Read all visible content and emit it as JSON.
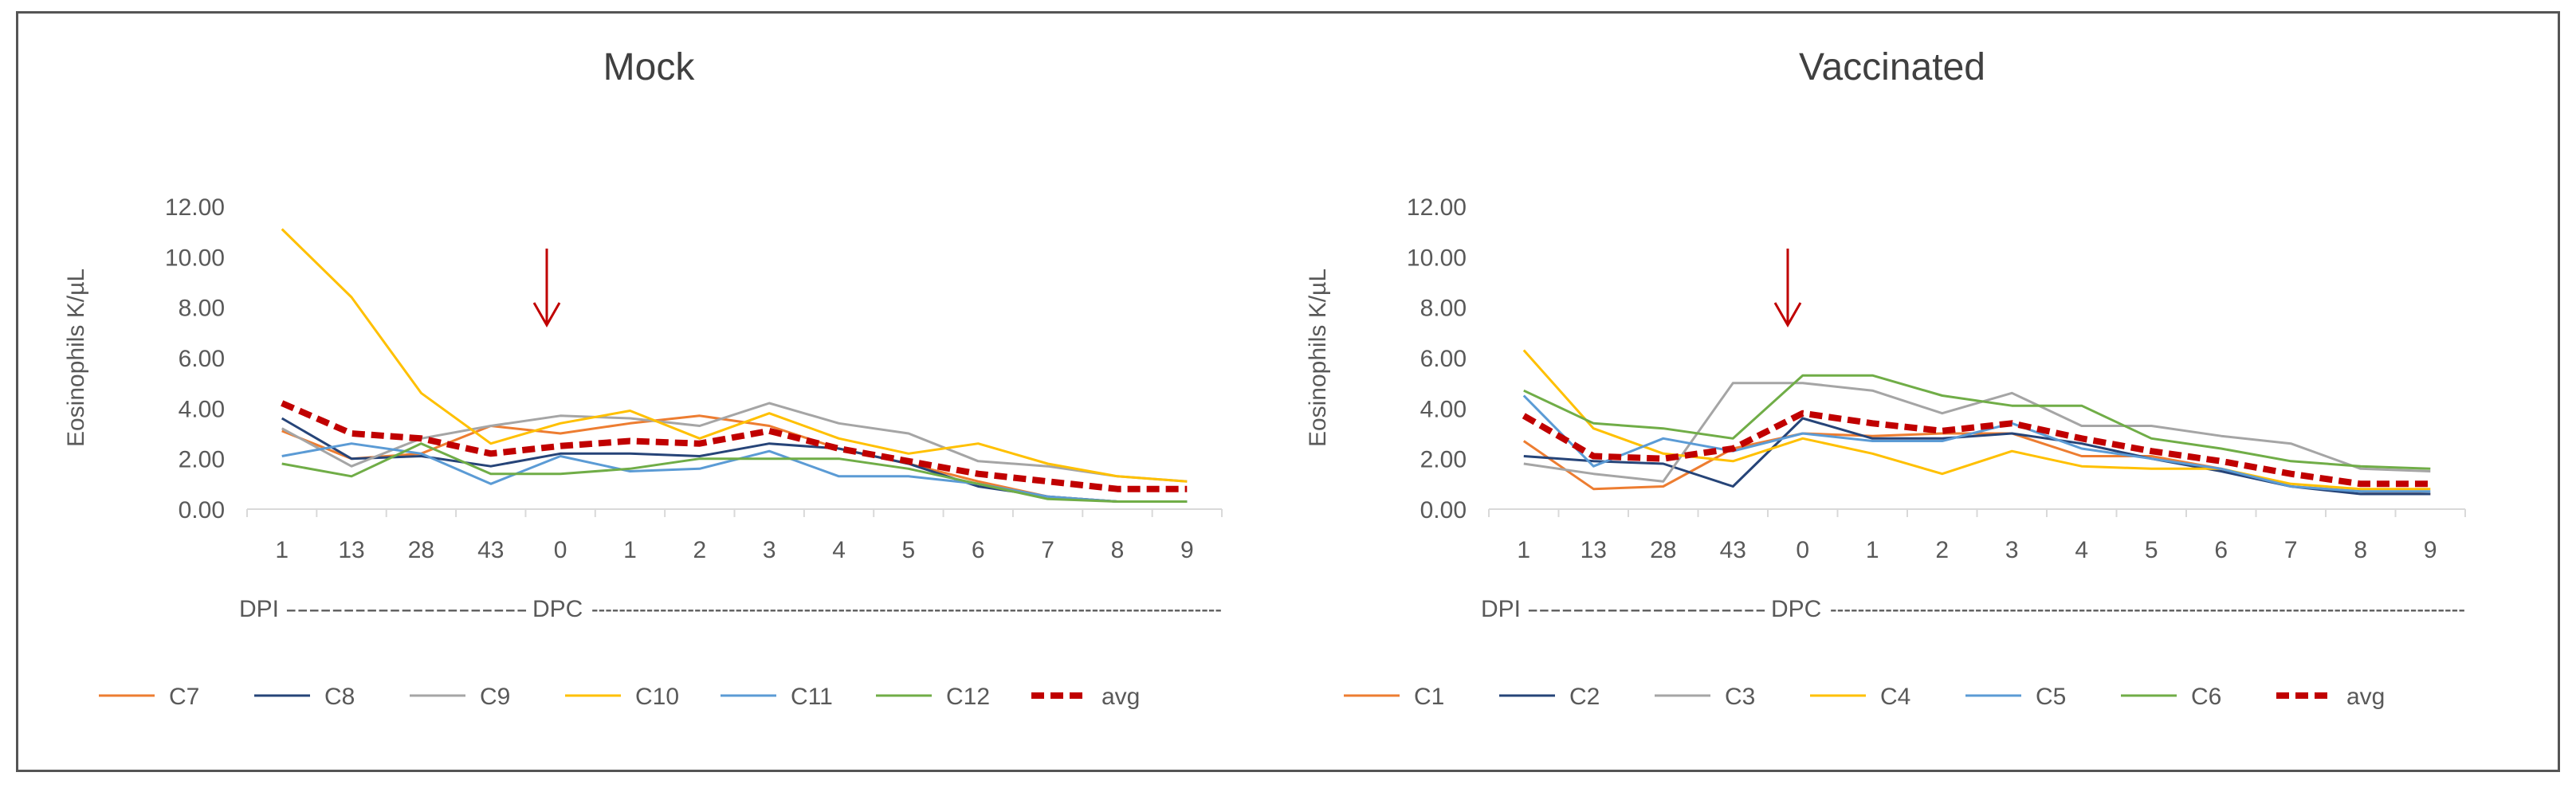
{
  "chart_data": [
    {
      "type": "line",
      "title": "Mock",
      "ylabel": "Eosinophils K/µL",
      "xlabel_left": "DPI",
      "xlabel_right": "DPC",
      "dash_left": "---------------------",
      "dash_right": "--------------------------------------------------------------------------------------------",
      "ylim": [
        0,
        12
      ],
      "y_ticks": [
        "0.00",
        "2.00",
        "4.00",
        "6.00",
        "8.00",
        "10.00",
        "12.00"
      ],
      "categories": [
        "1",
        "13",
        "28",
        "43",
        "0",
        "1",
        "2",
        "3",
        "4",
        "5",
        "6",
        "7",
        "8",
        "9"
      ],
      "arrow_category_index": 4,
      "series": [
        {
          "name": "C7",
          "color": "#ED7D31",
          "dashed": false,
          "values": [
            3.1,
            2.0,
            2.2,
            3.3,
            3.0,
            3.4,
            3.7,
            3.3,
            2.4,
            1.8,
            1.1,
            0.5,
            0.3,
            0.3
          ]
        },
        {
          "name": "C8",
          "color": "#264478",
          "dashed": false,
          "values": [
            3.6,
            2.0,
            2.1,
            1.7,
            2.2,
            2.2,
            2.1,
            2.6,
            2.4,
            1.8,
            0.9,
            0.5,
            0.3,
            0.3
          ]
        },
        {
          "name": "C9",
          "color": "#A5A5A5",
          "dashed": false,
          "values": [
            3.2,
            1.7,
            2.8,
            3.3,
            3.7,
            3.6,
            3.3,
            4.2,
            3.4,
            3.0,
            1.9,
            1.7,
            1.3,
            1.1
          ]
        },
        {
          "name": "C10",
          "color": "#FFC000",
          "dashed": false,
          "values": [
            11.1,
            8.4,
            4.6,
            2.6,
            3.4,
            3.9,
            2.8,
            3.8,
            2.8,
            2.2,
            2.6,
            1.8,
            1.3,
            1.1
          ]
        },
        {
          "name": "C11",
          "color": "#5B9BD5",
          "dashed": false,
          "values": [
            2.1,
            2.6,
            2.2,
            1.0,
            2.1,
            1.5,
            1.6,
            2.3,
            1.3,
            1.3,
            1.0,
            0.5,
            0.3,
            0.3
          ]
        },
        {
          "name": "C12",
          "color": "#70AD47",
          "dashed": false,
          "values": [
            1.8,
            1.3,
            2.6,
            1.4,
            1.4,
            1.6,
            2.0,
            2.0,
            2.0,
            1.6,
            1.0,
            0.4,
            0.3,
            0.3
          ]
        },
        {
          "name": "avg",
          "color": "#C00000",
          "dashed": true,
          "values": [
            4.2,
            3.0,
            2.8,
            2.2,
            2.5,
            2.7,
            2.6,
            3.1,
            2.4,
            1.9,
            1.4,
            1.1,
            0.8,
            0.8
          ]
        }
      ]
    },
    {
      "type": "line",
      "title": "Vaccinated",
      "ylabel": "Eosinophils K/µL",
      "xlabel_left": "DPI",
      "xlabel_right": "DPC",
      "dash_left": "---------------------",
      "dash_right": "--------------------------------------------------------------------------------------------",
      "ylim": [
        0,
        12
      ],
      "y_ticks": [
        "0.00",
        "2.00",
        "4.00",
        "6.00",
        "8.00",
        "10.00",
        "12.00"
      ],
      "categories": [
        "1",
        "13",
        "28",
        "43",
        "0",
        "1",
        "2",
        "3",
        "4",
        "5",
        "6",
        "7",
        "8",
        "9"
      ],
      "arrow_category_index": 4,
      "series": [
        {
          "name": "C1",
          "color": "#ED7D31",
          "dashed": false,
          "values": [
            2.7,
            0.8,
            0.9,
            2.4,
            3.0,
            2.9,
            3.0,
            3.0,
            2.1,
            2.1,
            1.6,
            0.9,
            0.7,
            0.6
          ]
        },
        {
          "name": "C2",
          "color": "#264478",
          "dashed": false,
          "values": [
            2.1,
            1.9,
            1.8,
            0.9,
            3.6,
            2.8,
            2.8,
            3.0,
            2.6,
            2.0,
            1.5,
            0.9,
            0.6,
            0.6
          ]
        },
        {
          "name": "C3",
          "color": "#A5A5A5",
          "dashed": false,
          "values": [
            1.8,
            1.4,
            1.1,
            5.0,
            5.0,
            4.7,
            3.8,
            4.6,
            3.3,
            3.3,
            2.9,
            2.6,
            1.6,
            1.5
          ]
        },
        {
          "name": "C4",
          "color": "#FFC000",
          "dashed": false,
          "values": [
            6.3,
            3.2,
            2.2,
            1.9,
            2.8,
            2.2,
            1.4,
            2.3,
            1.7,
            1.6,
            1.6,
            1.0,
            0.8,
            0.8
          ]
        },
        {
          "name": "C5",
          "color": "#5B9BD5",
          "dashed": false,
          "values": [
            4.5,
            1.7,
            2.8,
            2.3,
            3.0,
            2.7,
            2.7,
            3.4,
            2.4,
            2.0,
            1.6,
            0.9,
            0.7,
            0.7
          ]
        },
        {
          "name": "C6",
          "color": "#70AD47",
          "dashed": false,
          "values": [
            4.7,
            3.4,
            3.2,
            2.8,
            5.3,
            5.3,
            4.5,
            4.1,
            4.1,
            2.8,
            2.4,
            1.9,
            1.7,
            1.6
          ]
        },
        {
          "name": "avg",
          "color": "#C00000",
          "dashed": true,
          "values": [
            3.7,
            2.1,
            2.0,
            2.4,
            3.8,
            3.4,
            3.1,
            3.4,
            2.8,
            2.3,
            1.9,
            1.4,
            1.0,
            1.0
          ]
        }
      ]
    }
  ]
}
